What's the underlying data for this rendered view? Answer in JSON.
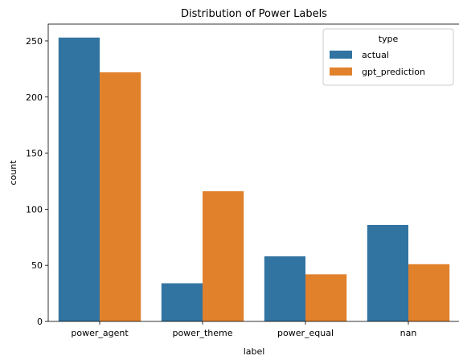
{
  "chart_data": {
    "type": "bar",
    "title": "Distribution of Power Labels",
    "xlabel": "label",
    "ylabel": "count",
    "categories": [
      "power_agent",
      "power_theme",
      "power_equal",
      "nan"
    ],
    "series": [
      {
        "name": "actual",
        "values": [
          253,
          34,
          58,
          86
        ],
        "color": "#3274a1"
      },
      {
        "name": "gpt_prediction",
        "values": [
          222,
          116,
          42,
          51
        ],
        "color": "#e1812c"
      }
    ],
    "ylim": [
      0,
      265
    ],
    "yticks": [
      0,
      50,
      100,
      150,
      200,
      250
    ],
    "grid": false,
    "legend": {
      "title": "type",
      "placement": "top-right"
    }
  }
}
